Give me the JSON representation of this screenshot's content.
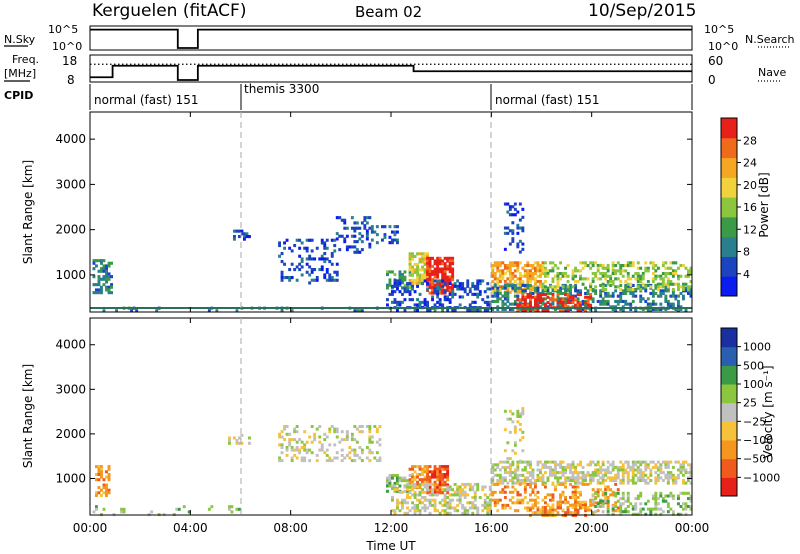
{
  "header": {
    "station": "Kerguelen (fitACF)",
    "beam": "Beam 02",
    "date": "10/Sep/2015"
  },
  "colors": {
    "power_scale": [
      "#0a1cf0",
      "#1d44c0",
      "#2a7f8f",
      "#3a9a45",
      "#8cc63f",
      "#f0d23c",
      "#f5a623",
      "#f06a1c",
      "#e8201a"
    ],
    "velocity_scale": [
      "#e8201a",
      "#f05a1c",
      "#f5961e",
      "#f5c23a",
      "#c0c0c0",
      "#8cc63f",
      "#3a9a45",
      "#2a5fb0",
      "#1a2fa0"
    ],
    "ground_scatter": "#a8a8a8",
    "baseline": "#2a6f5a"
  },
  "chart_data": [
    {
      "type": "line",
      "panel": "nsky-nsearch",
      "labels": {
        "left": "N.Sky",
        "right": "N.Search"
      },
      "left_ticks": [
        "10^5",
        "10^0"
      ],
      "right_ticks": [
        "10^5",
        "10^0"
      ],
      "series": [
        {
          "name": "N.Sky",
          "points": [
            [
              0,
              4.6
            ],
            [
              1,
              4.6
            ],
            [
              2,
              4.6
            ],
            [
              3,
              4.6
            ],
            [
              3.5,
              4.6
            ],
            [
              3.5,
              0
            ],
            [
              4.3,
              0
            ],
            [
              4.3,
              4.6
            ],
            [
              12,
              4.6
            ],
            [
              16,
              4.6
            ],
            [
              20,
              4.6
            ],
            [
              24,
              4.6
            ]
          ]
        }
      ]
    },
    {
      "type": "line",
      "panel": "freq-nave",
      "labels": {
        "left": "Freq.",
        "left_unit": "[MHz]",
        "right": "Nave"
      },
      "left_ticks": [
        "18",
        "8"
      ],
      "right_ticks": [
        "60",
        "0"
      ],
      "series": [
        {
          "name": "Freq",
          "points": [
            [
              0,
              9.2
            ],
            [
              0.9,
              9.2
            ],
            [
              0.9,
              14.2
            ],
            [
              3.5,
              14.2
            ],
            [
              3.5,
              8
            ],
            [
              4.3,
              8
            ],
            [
              4.3,
              14.2
            ],
            [
              12.9,
              14.2
            ],
            [
              12.9,
              11.8
            ],
            [
              24,
              11.8
            ]
          ]
        },
        {
          "name": "Nave",
          "points": [
            [
              0,
              41
            ],
            [
              24,
              41
            ]
          ]
        }
      ]
    },
    {
      "type": "table",
      "panel": "cpid",
      "label": "CPID",
      "segments": [
        {
          "start": 0,
          "end": 6,
          "name": "normal (fast) 151"
        },
        {
          "start": 6,
          "end": 16,
          "name": "themis 3300"
        },
        {
          "start": 16,
          "end": 24,
          "name": "normal (fast) 151"
        }
      ]
    },
    {
      "type": "heatmap",
      "panel": "power",
      "ylabel": "Slant Range [km]",
      "yticks": [
        1000,
        2000,
        3000,
        4000
      ],
      "ylim": [
        180,
        4600
      ],
      "xlim": [
        0,
        24
      ],
      "colorbar": {
        "label": "Power [dB]",
        "ticks": [
          "28",
          "24",
          "20",
          "16",
          "12",
          "8",
          "4"
        ]
      },
      "regions": [
        {
          "x0": 0.1,
          "x1": 0.9,
          "y0": 600,
          "y1": 1350,
          "color_index": 2,
          "density": 0.55
        },
        {
          "x0": 0.1,
          "x1": 24,
          "y0": 180,
          "y1": 300,
          "color_index": 2,
          "density": 0.15
        },
        {
          "x0": 5.5,
          "x1": 6.5,
          "y0": 1800,
          "y1": 2000,
          "color_index": 1,
          "density": 0.3
        },
        {
          "x0": 7.5,
          "x1": 9.8,
          "y0": 800,
          "y1": 1800,
          "color_index": 1,
          "density": 0.25
        },
        {
          "x0": 9.8,
          "x1": 11.2,
          "y0": 1500,
          "y1": 2300,
          "color_index": 1,
          "density": 0.35
        },
        {
          "x0": 11.2,
          "x1": 12.3,
          "y0": 1700,
          "y1": 2100,
          "color_index": 1,
          "density": 0.35
        },
        {
          "x0": 11.8,
          "x1": 12.8,
          "y0": 700,
          "y1": 1100,
          "color_index": 3,
          "density": 0.5
        },
        {
          "x0": 12.7,
          "x1": 13.5,
          "y0": 800,
          "y1": 1500,
          "color_index": 5,
          "density": 0.75
        },
        {
          "x0": 13.4,
          "x1": 14.5,
          "y0": 600,
          "y1": 1400,
          "color_index": 8,
          "density": 0.8
        },
        {
          "x0": 11.8,
          "x1": 16,
          "y0": 250,
          "y1": 900,
          "color_index": 1,
          "density": 0.35
        },
        {
          "x0": 16,
          "x1": 18,
          "y0": 600,
          "y1": 1300,
          "color_index": 6,
          "density": 0.7
        },
        {
          "x0": 16,
          "x1": 24,
          "y0": 250,
          "y1": 800,
          "color_index": 2,
          "density": 0.45
        },
        {
          "x0": 17,
          "x1": 20,
          "y0": 200,
          "y1": 600,
          "color_index": 8,
          "density": 0.5
        },
        {
          "x0": 18,
          "x1": 24,
          "y0": 700,
          "y1": 1300,
          "color_index": 4,
          "density": 0.4
        },
        {
          "x0": 16.5,
          "x1": 17.2,
          "y0": 1400,
          "y1": 2600,
          "color_index": 1,
          "density": 0.25
        }
      ]
    },
    {
      "type": "heatmap",
      "panel": "velocity",
      "ylabel": "Slant Range [km]",
      "yticks": [
        1000,
        2000,
        3000,
        4000
      ],
      "ylim": [
        180,
        4600
      ],
      "xlim": [
        0,
        24
      ],
      "xlabel": "Time UT",
      "xticks": [
        "00:00",
        "04:00",
        "08:00",
        "12:00",
        "16:00",
        "20:00",
        "00:00"
      ],
      "colorbar": {
        "label": "Velocity [m s⁻¹]",
        "ticks": [
          "1000",
          "500",
          "100",
          "25",
          "−25",
          "−100",
          "−500",
          "−1000"
        ]
      },
      "regions": [
        {
          "x0": 0.2,
          "x1": 0.8,
          "y0": 600,
          "y1": 1300,
          "color_index": 2,
          "density": 0.5
        },
        {
          "x0": 0.1,
          "x1": 6,
          "y0": 200,
          "y1": 400,
          "color_index": 5,
          "density": 0.12
        },
        {
          "x0": 5.5,
          "x1": 6.5,
          "y0": 1800,
          "y1": 2000,
          "color_index": 4,
          "density": 0.3
        },
        {
          "x0": 7.5,
          "x1": 11.5,
          "y0": 1400,
          "y1": 2200,
          "color_index": 4,
          "density": 0.25
        },
        {
          "x0": 11.8,
          "x1": 12.8,
          "y0": 700,
          "y1": 1100,
          "color_index": 5,
          "density": 0.6
        },
        {
          "x0": 12.7,
          "x1": 13.4,
          "y0": 800,
          "y1": 1300,
          "color_index": 2,
          "density": 0.75
        },
        {
          "x0": 13.4,
          "x1": 14.3,
          "y0": 700,
          "y1": 1300,
          "color_index": 1,
          "density": 0.8
        },
        {
          "x0": 12,
          "x1": 16,
          "y0": 250,
          "y1": 900,
          "color_index": 4,
          "density": 0.45
        },
        {
          "x0": 16,
          "x1": 24,
          "y0": 900,
          "y1": 1400,
          "color_index": 4,
          "density": 0.6
        },
        {
          "x0": 16,
          "x1": 21,
          "y0": 300,
          "y1": 900,
          "color_index": 2,
          "density": 0.35
        },
        {
          "x0": 17.5,
          "x1": 20,
          "y0": 180,
          "y1": 500,
          "color_index": 2,
          "density": 0.45
        },
        {
          "x0": 20,
          "x1": 24,
          "y0": 200,
          "y1": 700,
          "color_index": 5,
          "density": 0.35
        },
        {
          "x0": 16.5,
          "x1": 17.2,
          "y0": 1400,
          "y1": 2600,
          "color_index": 4,
          "density": 0.2
        }
      ]
    }
  ]
}
